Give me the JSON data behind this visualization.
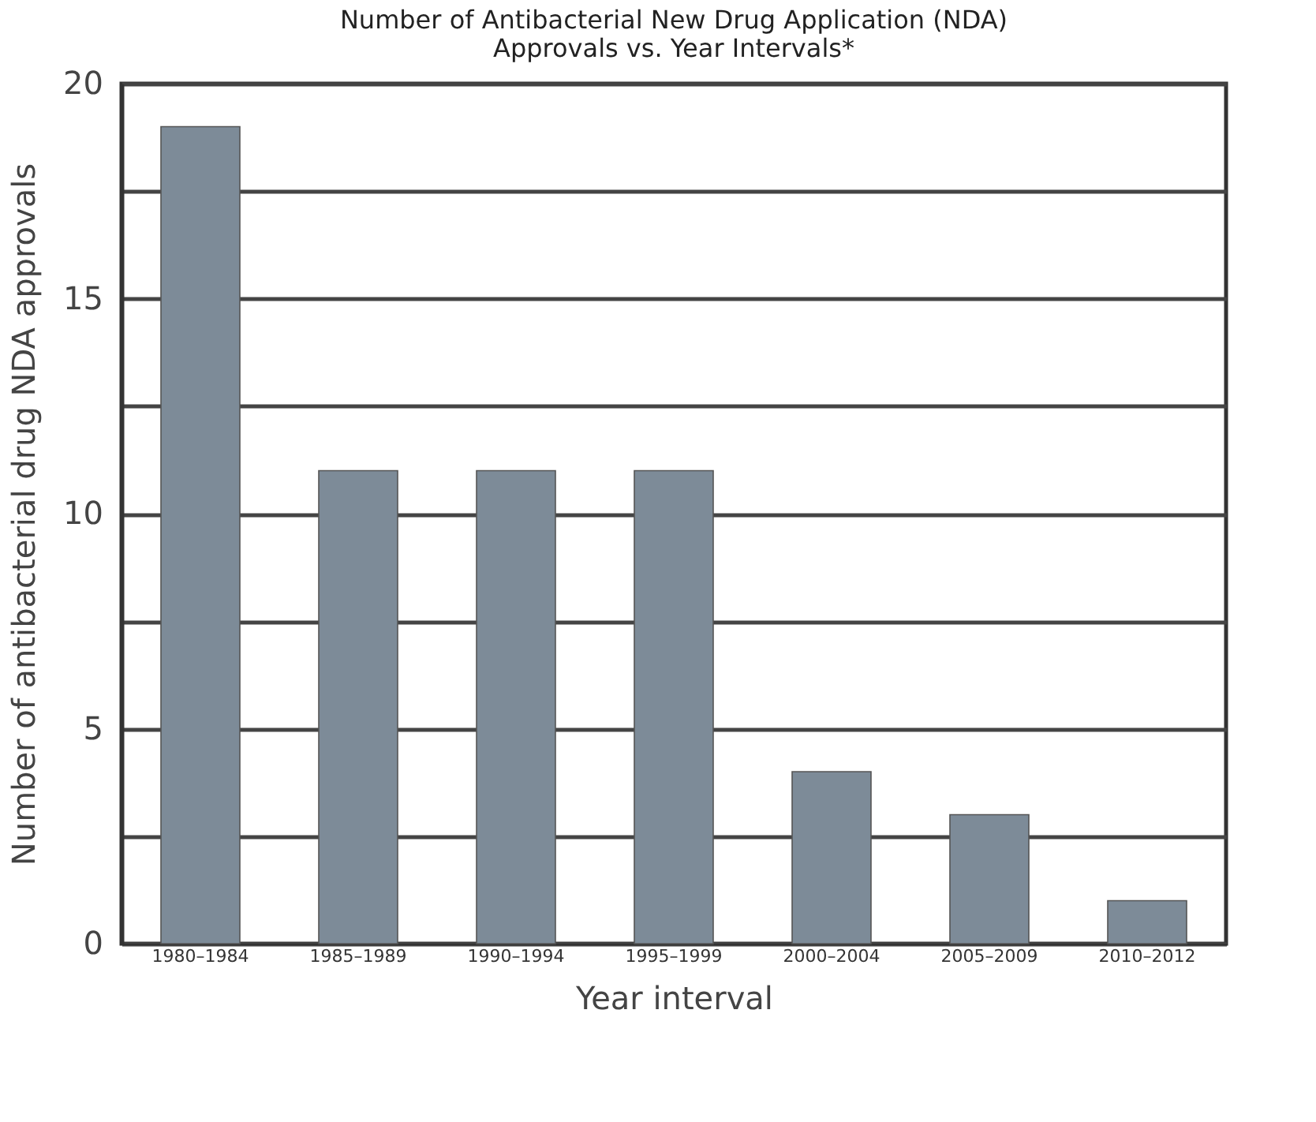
{
  "chart_data": {
    "type": "bar",
    "title": "Number of Antibacterial New Drug Application (NDA)\nApprovals vs. Year Intervals*",
    "xlabel": "Year interval",
    "ylabel": "Number of antibacterial drug NDA approvals",
    "categories": [
      "1980–1984",
      "1985–1989",
      "1990–1994",
      "1995–1999",
      "2000–2004",
      "2005–2009",
      "2010–2012"
    ],
    "values": [
      19,
      11,
      11,
      11,
      4,
      3,
      1
    ],
    "color": "#7d8b98",
    "ylim": [
      0,
      20
    ],
    "yticks": [
      0,
      {
        "value": 2.5,
        "label": null
      },
      5,
      {
        "value": 7.5,
        "label": null
      },
      10,
      {
        "value": 12.5,
        "label": null
      },
      15,
      {
        "value": 17.5,
        "label": null
      },
      20
    ],
    "grid": "y"
  }
}
